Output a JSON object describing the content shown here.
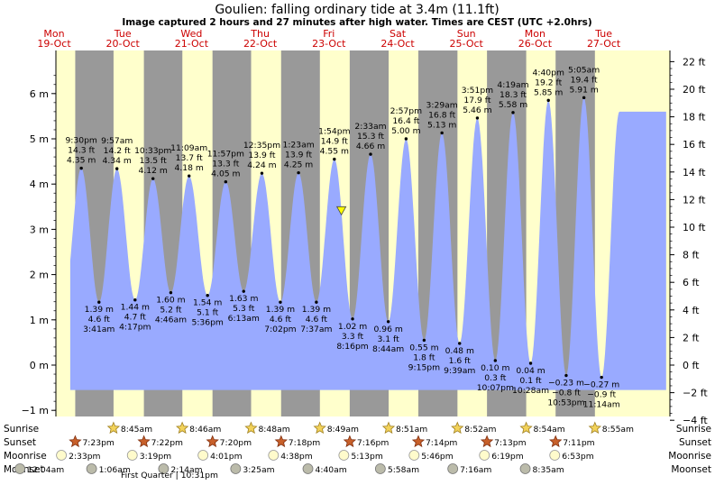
{
  "chart_data": {
    "type": "area",
    "title": "Goulien: falling  ordinary tide at 3.4m (11.1ft)",
    "subtitle": "Image captured 2 hours and 27 minutes after high water. Times are CEST (UTC +2.0hrs)",
    "y_left_unit": "m",
    "y_right_unit": "ft",
    "ylim_m": [
      -1.2,
      6.75
    ],
    "y_left_ticks": [
      {
        "v": 6,
        "label": "6 m"
      },
      {
        "v": 5,
        "label": "5 m"
      },
      {
        "v": 4,
        "label": "4 m"
      },
      {
        "v": 3,
        "label": "3 m"
      },
      {
        "v": 2,
        "label": "2 m"
      },
      {
        "v": 1,
        "label": "1 m"
      },
      {
        "v": 0,
        "label": "0 m"
      },
      {
        "v": -1,
        "label": "−1 m"
      }
    ],
    "y_right_ticks": [
      {
        "v": 22,
        "label": "22 ft"
      },
      {
        "v": 20,
        "label": "20 ft"
      },
      {
        "v": 18,
        "label": "18 ft"
      },
      {
        "v": 16,
        "label": "16 ft"
      },
      {
        "v": 14,
        "label": "14 ft"
      },
      {
        "v": 12,
        "label": "12 ft"
      },
      {
        "v": 10,
        "label": "10 ft"
      },
      {
        "v": 8,
        "label": "8 ft"
      },
      {
        "v": 6,
        "label": "6 ft"
      },
      {
        "v": 4,
        "label": "4 ft"
      },
      {
        "v": 2,
        "label": "2 ft"
      },
      {
        "v": 0,
        "label": "0 ft"
      },
      {
        "v": -2,
        "label": "−2 ft"
      },
      {
        "v": -4,
        "label": "−4 ft"
      }
    ],
    "days": [
      {
        "name": "Mon",
        "date": "19-Oct"
      },
      {
        "name": "Tue",
        "date": "20-Oct"
      },
      {
        "name": "Wed",
        "date": "21-Oct"
      },
      {
        "name": "Thu",
        "date": "22-Oct"
      },
      {
        "name": "Fri",
        "date": "23-Oct"
      },
      {
        "name": "Sat",
        "date": "24-Oct"
      },
      {
        "name": "Sun",
        "date": "25-Oct"
      },
      {
        "name": "Mon",
        "date": "26-Oct"
      },
      {
        "name": "Tue",
        "date": "27-Oct"
      }
    ],
    "sunrise": [
      "8:45am",
      "8:46am",
      "8:48am",
      "8:49am",
      "8:51am",
      "8:52am",
      "8:54am",
      "8:55am"
    ],
    "sunset": [
      "7:23pm",
      "7:22pm",
      "7:20pm",
      "7:18pm",
      "7:16pm",
      "7:14pm",
      "7:13pm",
      "7:11pm"
    ],
    "moonrise": [
      "2:33pm",
      "3:19pm",
      "4:01pm",
      "4:38pm",
      "5:13pm",
      "5:46pm",
      "6:19pm",
      "6:53pm"
    ],
    "moonset": [
      "12:04am",
      "1:06am",
      "2:14am",
      "3:25am",
      "4:40am",
      "5:58am",
      "7:16am",
      "8:35am"
    ],
    "row_labels": {
      "sunrise": "Sunrise",
      "sunset": "Sunset",
      "moonrise": "Moonrise",
      "moonset": "Moonset"
    },
    "moon_phase_note": "First Quarter | 10:31pm",
    "current_level_m": 3.4,
    "tides": [
      {
        "type": "high",
        "time": "9:30 pm",
        "ft": "14.3 ft",
        "m": 4.35,
        "m_label": "4.35 m"
      },
      {
        "type": "low",
        "time": "3:41 am",
        "ft": "4.6 ft",
        "m": 1.39,
        "m_label": "1.39 m"
      },
      {
        "type": "high",
        "time": "9:57 am",
        "ft": "14.2 ft",
        "m": 4.34,
        "m_label": "4.34 m"
      },
      {
        "type": "low",
        "time": "4:17 pm",
        "ft": "4.7 ft",
        "m": 1.44,
        "m_label": "1.44 m"
      },
      {
        "type": "high",
        "time": "10:33 pm",
        "ft": "13.5 ft",
        "m": 4.12,
        "m_label": "4.12 m"
      },
      {
        "type": "low",
        "time": "4:46 am",
        "ft": "5.2 ft",
        "m": 1.6,
        "m_label": "1.60 m"
      },
      {
        "type": "high",
        "time": "11:09 am",
        "ft": "13.7 ft",
        "m": 4.18,
        "m_label": "4.18 m"
      },
      {
        "type": "low",
        "time": "5:36 pm",
        "ft": "5.1 ft",
        "m": 1.54,
        "m_label": "1.54 m"
      },
      {
        "type": "high",
        "time": "11:57 pm",
        "ft": "13.3 ft",
        "m": 4.05,
        "m_label": "4.05 m"
      },
      {
        "type": "low",
        "time": "6:13 am",
        "ft": "5.3 ft",
        "m": 1.63,
        "m_label": "1.63 m"
      },
      {
        "type": "high",
        "time": "12:35 pm",
        "ft": "13.9 ft",
        "m": 4.24,
        "m_label": "4.24 m"
      },
      {
        "type": "low",
        "time": "7:02 pm",
        "ft": "4.6 ft",
        "m": 1.39,
        "m_label": "1.39 m"
      },
      {
        "type": "high",
        "time": "1:23 am",
        "ft": "13.9 ft",
        "m": 4.25,
        "m_label": "4.25 m"
      },
      {
        "type": "low",
        "time": "7:37 am",
        "ft": "4.6 ft",
        "m": 1.39,
        "m_label": "1.39 m"
      },
      {
        "type": "high",
        "time": "1:54 pm",
        "ft": "14.9 ft",
        "m": 4.55,
        "m_label": "4.55 m"
      },
      {
        "type": "low",
        "time": "8:16 pm",
        "ft": "3.3 ft",
        "m": 1.02,
        "m_label": "1.02 m"
      },
      {
        "type": "high",
        "time": "2:33 am",
        "ft": "15.3 ft",
        "m": 4.66,
        "m_label": "4.66 m"
      },
      {
        "type": "low",
        "time": "8:44 am",
        "ft": "3.1 ft",
        "m": 0.96,
        "m_label": "0.96 m"
      },
      {
        "type": "high",
        "time": "2:57 pm",
        "ft": "16.4 ft",
        "m": 5.0,
        "m_label": "5.00 m"
      },
      {
        "type": "low",
        "time": "9:15 pm",
        "ft": "1.8 ft",
        "m": 0.55,
        "m_label": "0.55 m"
      },
      {
        "type": "high",
        "time": "3:29 am",
        "ft": "16.8 ft",
        "m": 5.13,
        "m_label": "5.13 m"
      },
      {
        "type": "low",
        "time": "9:39 am",
        "ft": "1.6 ft",
        "m": 0.48,
        "m_label": "0.48 m"
      },
      {
        "type": "high",
        "time": "3:51 pm",
        "ft": "17.9 ft",
        "m": 5.46,
        "m_label": "5.46 m"
      },
      {
        "type": "low",
        "time": "10:07 pm",
        "ft": "0.3 ft",
        "m": 0.1,
        "m_label": "0.10 m"
      },
      {
        "type": "high",
        "time": "4:19 am",
        "ft": "18.3 ft",
        "m": 5.58,
        "m_label": "5.58 m"
      },
      {
        "type": "low",
        "time": "10:28 am",
        "ft": "0.1 ft",
        "m": 0.04,
        "m_label": "0.04 m"
      },
      {
        "type": "high",
        "time": "4:40 pm",
        "ft": "19.2 ft",
        "m": 5.85,
        "m_label": "5.85 m"
      },
      {
        "type": "low",
        "time": "10:53 pm",
        "ft": "−0.8 ft",
        "m": -0.23,
        "m_label": "−0.23 m"
      },
      {
        "type": "high",
        "time": "5:05 am",
        "ft": "19.4 ft",
        "m": 5.91,
        "m_label": "5.91 m"
      },
      {
        "type": "low",
        "time": "11:14 am",
        "ft": "−0.9 ft",
        "m": -0.27,
        "m_label": "−0.27 m"
      }
    ],
    "colors": {
      "day": "#ffffcc",
      "night": "#999999",
      "tide": "#99aaff",
      "day_text": "#cc0000",
      "marker": "#ffff00"
    }
  }
}
